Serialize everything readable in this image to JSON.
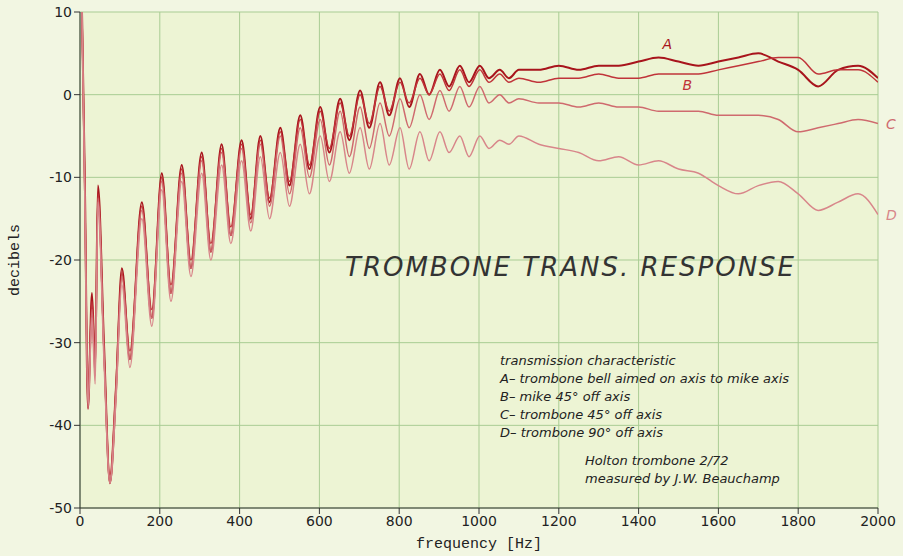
{
  "chart_data": {
    "type": "line",
    "title": "TROMBONE TRANS. RESPONSE",
    "x_label": "frequency [Hz]",
    "y_label": "decibels",
    "annotations": [
      "transmission characteristic",
      "A– trombone bell aimed on axis to mike axis",
      "B– mike 45° off axis",
      "C– trombone 45° off axis",
      "D– trombone 90° off axis",
      "Holton trombone 2/72",
      "measured by J.W. Beauchamp"
    ],
    "x": [
      5,
      12,
      20,
      30,
      38,
      45,
      60,
      75,
      90,
      105,
      125,
      155,
      180,
      205,
      228,
      255,
      278,
      305,
      328,
      355,
      378,
      405,
      428,
      452,
      475,
      502,
      525,
      552,
      575,
      602,
      625,
      652,
      675,
      702,
      725,
      752,
      775,
      802,
      825,
      852,
      875,
      902,
      925,
      952,
      975,
      1002,
      1025,
      1052,
      1075,
      1100,
      1150,
      1200,
      1250,
      1300,
      1350,
      1400,
      1450,
      1500,
      1550,
      1600,
      1650,
      1700,
      1750,
      1800,
      1850,
      1900,
      1950,
      2000
    ],
    "series": [
      {
        "name": "A",
        "color": "#a8141c",
        "values": [
          10,
          -10,
          -38,
          -24,
          -33,
          -11,
          -30,
          -47,
          -36,
          -21,
          -32,
          -13,
          -27,
          -9.5,
          -24,
          -8.5,
          -21,
          -7,
          -19,
          -6,
          -17,
          -5.5,
          -15,
          -5,
          -13,
          -4,
          -11,
          -2.5,
          -9,
          -1.5,
          -7,
          -0.5,
          -5.5,
          0.5,
          -4,
          1.5,
          -2.5,
          2,
          -1.5,
          2.5,
          0,
          3,
          1,
          3.5,
          1.5,
          3.5,
          2,
          3,
          2,
          3,
          3,
          3.5,
          3,
          3.5,
          3.5,
          4,
          4.5,
          4,
          3.5,
          4,
          4.5,
          5,
          4,
          3,
          1,
          3,
          3.5,
          2
        ]
      },
      {
        "name": "B",
        "color": "#c0343a",
        "values": [
          10,
          -11,
          -36,
          -25,
          -32,
          -12,
          -31,
          -46,
          -35,
          -21.5,
          -31,
          -13.5,
          -26,
          -10,
          -23,
          -9,
          -20,
          -7.5,
          -18,
          -6.5,
          -16,
          -6,
          -14.5,
          -5.5,
          -12.5,
          -4.5,
          -10.5,
          -3,
          -8.5,
          -2,
          -6.5,
          -1,
          -5,
          0,
          -3.5,
          1,
          -2,
          1.5,
          -1,
          2,
          0,
          2.5,
          0.5,
          3,
          1,
          3,
          1.5,
          2.5,
          1.5,
          2,
          1.5,
          2,
          2,
          2.5,
          2,
          2,
          2.5,
          2.5,
          2.5,
          3,
          3.5,
          4,
          4.5,
          4.5,
          2.5,
          3,
          3,
          1.5
        ]
      },
      {
        "name": "C",
        "color": "#cf6a6e",
        "values": [
          10,
          -12,
          -37,
          -26,
          -34,
          -12.5,
          -31,
          -47,
          -36,
          -22,
          -32,
          -14,
          -27,
          -10.5,
          -24,
          -9.5,
          -21,
          -8,
          -19,
          -7,
          -17,
          -6.5,
          -15.5,
          -6,
          -13.5,
          -5,
          -12,
          -4,
          -10,
          -3,
          -8.5,
          -2,
          -7.5,
          -1.5,
          -6.5,
          -1,
          -5,
          -0.5,
          -4,
          0,
          -3,
          0.5,
          -2,
          1,
          -1.5,
          1,
          -1,
          0,
          -1,
          -0.5,
          -1,
          -1,
          -1.5,
          -1,
          -1.5,
          -1.5,
          -2,
          -2,
          -2,
          -2.5,
          -2.5,
          -2.5,
          -3,
          -4.5,
          -4,
          -3.5,
          -3,
          -3.5
        ]
      },
      {
        "name": "D",
        "color": "#d8868a",
        "values": [
          10,
          -12,
          -38,
          -27,
          -35,
          -13,
          -32,
          -47,
          -37,
          -23,
          -33,
          -15,
          -28,
          -11.5,
          -25,
          -10.5,
          -22,
          -9.5,
          -20,
          -8.5,
          -18,
          -8,
          -16.5,
          -7.5,
          -15,
          -7,
          -13.5,
          -6,
          -12,
          -5,
          -10.5,
          -4.5,
          -9.5,
          -4,
          -9,
          -3.5,
          -8.5,
          -4,
          -9,
          -4.5,
          -8,
          -4.5,
          -7,
          -5,
          -7.5,
          -5,
          -6.5,
          -5.5,
          -6,
          -5,
          -6,
          -6.5,
          -7,
          -8,
          -7.5,
          -8.5,
          -8,
          -9,
          -9.5,
          -11,
          -12,
          -11,
          -10.5,
          -12,
          -14,
          -13,
          -12,
          -14.5
        ]
      }
    ],
    "xlim": [
      0,
      2000
    ],
    "xticks": [
      0,
      200,
      400,
      600,
      800,
      1000,
      1200,
      1400,
      1600,
      1800,
      2000
    ],
    "ylim": [
      -50,
      10
    ],
    "yticks": [
      -50,
      -40,
      -30,
      -20,
      -10,
      0,
      10
    ],
    "grid": true
  }
}
